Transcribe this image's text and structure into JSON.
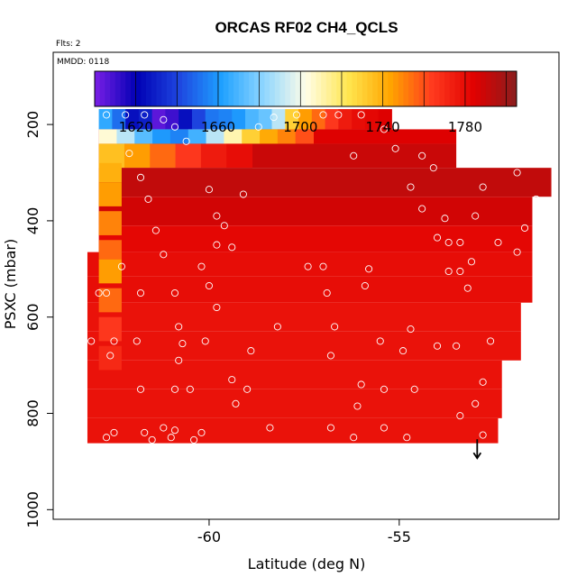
{
  "chart_data": {
    "type": "heatmap",
    "title": "ORCAS RF02 CH4_QCLS",
    "flts_text": "Flts: 2",
    "mmdd_text": "MMDD: 0118",
    "xlabel": "Latitude (deg N)",
    "ylabel": "PSXC (mbar)",
    "xlim": [
      -64.1,
      -50.8
    ],
    "ylim": [
      1020,
      50
    ],
    "x_ticks": [
      -60,
      -55
    ],
    "x_tick_labels": [
      "-60",
      "-55"
    ],
    "y_ticks": [
      200,
      400,
      600,
      800,
      1000
    ],
    "y_tick_labels": [
      "200",
      "400",
      "600",
      "800",
      "1000"
    ],
    "grid": false,
    "legend": "colorbar-top",
    "colorbar": {
      "range": [
        1600,
        1805
      ],
      "tick_values": [
        1620,
        1660,
        1700,
        1740,
        1780
      ],
      "tick_labels": [
        "1620",
        "1660",
        "1700",
        "1740",
        "1780"
      ],
      "colors": [
        "#7a1fe6",
        "#0000b4",
        "#1e46e0",
        "#1ea0ff",
        "#8ed6ff",
        "#fffde8",
        "#ffe650",
        "#ffa500",
        "#ff3a1e",
        "#e00000",
        "#8a1e1e"
      ]
    },
    "layers": [
      {
        "p": 200,
        "x_start": -62.9,
        "x_end": -55.2,
        "value": 1690,
        "cells": [
          1665,
          1650,
          1625,
          1630,
          1605,
          1610,
          1625,
          1640,
          1652,
          1655,
          1660,
          1670,
          1675,
          1690,
          1730,
          1745,
          1755,
          1765,
          1775,
          1780,
          1782,
          1785
        ]
      },
      {
        "p": 220,
        "x_start": -62.9,
        "x_end": -53.5,
        "value": 1785,
        "cells": [
          1705,
          1690,
          1672,
          1660,
          1655,
          1668,
          1690,
          1710,
          1730,
          1742,
          1750,
          1760
        ]
      },
      {
        "p": 260,
        "x_start": -62.9,
        "x_end": -53.5,
        "value": 1790,
        "cells": [
          1735,
          1745,
          1755,
          1765,
          1775,
          1780
        ]
      },
      {
        "p": 320,
        "x_start": -62.9,
        "x_end": -51.0,
        "value": 1792
      },
      {
        "p": 380,
        "x_start": -62.9,
        "x_end": -51.5,
        "value": 1788
      },
      {
        "p": 440,
        "x_start": -62.9,
        "x_end": -51.5,
        "value": 1782
      },
      {
        "p": 490,
        "x_start": -63.2,
        "x_end": -51.5,
        "value": 1780
      },
      {
        "p": 540,
        "x_start": -63.2,
        "x_end": -51.5,
        "value": 1780
      },
      {
        "p": 600,
        "x_start": -63.2,
        "x_end": -51.8,
        "value": 1778
      },
      {
        "p": 660,
        "x_start": -63.2,
        "x_end": -51.8,
        "value": 1778
      },
      {
        "p": 720,
        "x_start": -63.2,
        "x_end": -52.3,
        "value": 1778
      },
      {
        "p": 780,
        "x_start": -63.2,
        "x_end": -52.3,
        "value": 1778
      },
      {
        "p": 840,
        "x_start": -63.2,
        "x_end": -52.4,
        "value": 1778
      }
    ],
    "edge_column": {
      "x_start": -62.9,
      "x_end": -62.3,
      "values": [
        [
          300,
          1740
        ],
        [
          340,
          1745
        ],
        [
          400,
          1750
        ],
        [
          460,
          1755
        ],
        [
          500,
          1745
        ],
        [
          560,
          1755
        ],
        [
          620,
          1765
        ],
        [
          680,
          1770
        ]
      ]
    },
    "observations": [
      {
        "lat": -62.7,
        "p": 180
      },
      {
        "lat": -62.2,
        "p": 180
      },
      {
        "lat": -61.7,
        "p": 180
      },
      {
        "lat": -61.2,
        "p": 190
      },
      {
        "lat": -60.9,
        "p": 205
      },
      {
        "lat": -60.6,
        "p": 235
      },
      {
        "lat": -58.7,
        "p": 205
      },
      {
        "lat": -58.3,
        "p": 185
      },
      {
        "lat": -57.7,
        "p": 180
      },
      {
        "lat": -57.0,
        "p": 180
      },
      {
        "lat": -56.6,
        "p": 180
      },
      {
        "lat": -56.0,
        "p": 180
      },
      {
        "lat": -55.4,
        "p": 210
      },
      {
        "lat": -55.1,
        "p": 250
      },
      {
        "lat": -54.4,
        "p": 265
      },
      {
        "lat": -54.1,
        "p": 290
      },
      {
        "lat": -62.1,
        "p": 260
      },
      {
        "lat": -61.8,
        "p": 310
      },
      {
        "lat": -61.6,
        "p": 355
      },
      {
        "lat": -60.0,
        "p": 335
      },
      {
        "lat": -59.1,
        "p": 345
      },
      {
        "lat": -56.2,
        "p": 265
      },
      {
        "lat": -54.7,
        "p": 330
      },
      {
        "lat": -52.8,
        "p": 330
      },
      {
        "lat": -51.9,
        "p": 300
      },
      {
        "lat": -51.4,
        "p": 355
      },
      {
        "lat": -54.4,
        "p": 375
      },
      {
        "lat": -59.8,
        "p": 390
      },
      {
        "lat": -53.8,
        "p": 395
      },
      {
        "lat": -53.0,
        "p": 390
      },
      {
        "lat": -51.7,
        "p": 415
      },
      {
        "lat": -61.4,
        "p": 420
      },
      {
        "lat": -59.6,
        "p": 410
      },
      {
        "lat": -54.0,
        "p": 435
      },
      {
        "lat": -53.7,
        "p": 445
      },
      {
        "lat": -53.4,
        "p": 445
      },
      {
        "lat": -59.8,
        "p": 450
      },
      {
        "lat": -59.4,
        "p": 455
      },
      {
        "lat": -52.4,
        "p": 445
      },
      {
        "lat": -51.9,
        "p": 465
      },
      {
        "lat": -61.2,
        "p": 470
      },
      {
        "lat": -53.1,
        "p": 485
      },
      {
        "lat": -62.3,
        "p": 495
      },
      {
        "lat": -60.2,
        "p": 495
      },
      {
        "lat": -57.4,
        "p": 495
      },
      {
        "lat": -57.0,
        "p": 495
      },
      {
        "lat": -55.8,
        "p": 500
      },
      {
        "lat": -53.7,
        "p": 505
      },
      {
        "lat": -53.4,
        "p": 505
      },
      {
        "lat": -61.8,
        "p": 550
      },
      {
        "lat": -62.7,
        "p": 550
      },
      {
        "lat": -62.9,
        "p": 550
      },
      {
        "lat": -60.9,
        "p": 550
      },
      {
        "lat": -60.0,
        "p": 535
      },
      {
        "lat": -56.9,
        "p": 550
      },
      {
        "lat": -55.9,
        "p": 535
      },
      {
        "lat": -53.2,
        "p": 540
      },
      {
        "lat": -59.8,
        "p": 580
      },
      {
        "lat": -60.8,
        "p": 620
      },
      {
        "lat": -58.2,
        "p": 620
      },
      {
        "lat": -56.7,
        "p": 620
      },
      {
        "lat": -54.7,
        "p": 625
      },
      {
        "lat": -63.1,
        "p": 650
      },
      {
        "lat": -62.5,
        "p": 650
      },
      {
        "lat": -61.9,
        "p": 650
      },
      {
        "lat": -60.7,
        "p": 655
      },
      {
        "lat": -60.1,
        "p": 650
      },
      {
        "lat": -55.5,
        "p": 650
      },
      {
        "lat": -54.9,
        "p": 670
      },
      {
        "lat": -52.6,
        "p": 650
      },
      {
        "lat": -53.5,
        "p": 660
      },
      {
        "lat": -62.6,
        "p": 680
      },
      {
        "lat": -60.8,
        "p": 690
      },
      {
        "lat": -58.9,
        "p": 670
      },
      {
        "lat": -56.8,
        "p": 680
      },
      {
        "lat": -54.0,
        "p": 660
      },
      {
        "lat": -59.4,
        "p": 730
      },
      {
        "lat": -56.0,
        "p": 740
      },
      {
        "lat": -52.8,
        "p": 735
      },
      {
        "lat": -63.3,
        "p": 750
      },
      {
        "lat": -61.8,
        "p": 750
      },
      {
        "lat": -60.9,
        "p": 750
      },
      {
        "lat": -60.5,
        "p": 750
      },
      {
        "lat": -59.0,
        "p": 750
      },
      {
        "lat": -55.4,
        "p": 750
      },
      {
        "lat": -54.6,
        "p": 750
      },
      {
        "lat": -53.0,
        "p": 780
      },
      {
        "lat": -59.3,
        "p": 780
      },
      {
        "lat": -56.1,
        "p": 785
      },
      {
        "lat": -53.4,
        "p": 805
      },
      {
        "lat": -62.5,
        "p": 840
      },
      {
        "lat": -61.7,
        "p": 840
      },
      {
        "lat": -61.2,
        "p": 830
      },
      {
        "lat": -60.9,
        "p": 835
      },
      {
        "lat": -60.2,
        "p": 840
      },
      {
        "lat": -58.4,
        "p": 830
      },
      {
        "lat": -56.8,
        "p": 830
      },
      {
        "lat": -55.4,
        "p": 830
      },
      {
        "lat": -63.3,
        "p": 850
      },
      {
        "lat": -62.7,
        "p": 850
      },
      {
        "lat": -61.5,
        "p": 855
      },
      {
        "lat": -61.0,
        "p": 850
      },
      {
        "lat": -60.4,
        "p": 855
      },
      {
        "lat": -56.2,
        "p": 850
      },
      {
        "lat": -54.8,
        "p": 850
      },
      {
        "lat": -52.8,
        "p": 845
      }
    ],
    "marker": {
      "lat": -52.95,
      "p": 880,
      "symbol": "arrow-down"
    }
  }
}
